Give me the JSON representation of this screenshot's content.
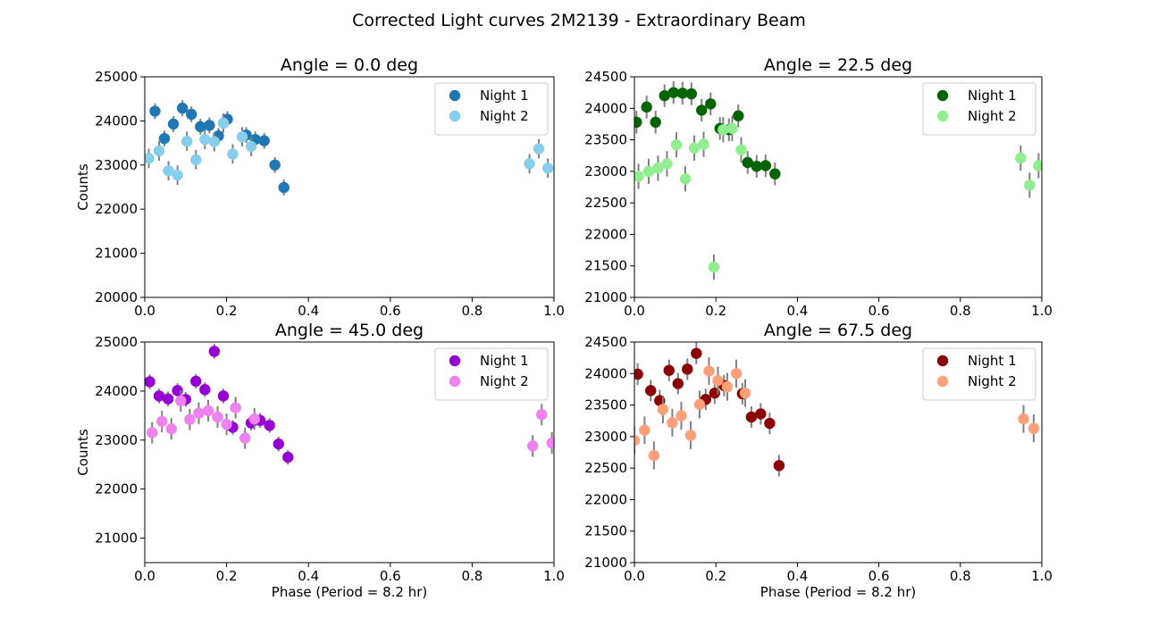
{
  "figure": {
    "suptitle": "Corrected Light curves 2M2139 - Extraordinary Beam"
  },
  "colors": {
    "errorbar": "#808080"
  },
  "chart_data": [
    {
      "type": "scatter",
      "title": "Angle = 0.0 deg",
      "xlabel": "",
      "ylabel": "Counts",
      "xlim": [
        0.0,
        1.0
      ],
      "ylim": [
        20000,
        25000
      ],
      "xticks": [
        0.0,
        0.2,
        0.4,
        0.6,
        0.8,
        1.0
      ],
      "xtick_labels": [
        "0.0",
        "0.2",
        "0.4",
        "0.6",
        "0.8",
        "1.0"
      ],
      "yticks": [
        20000,
        21000,
        22000,
        23000,
        24000,
        25000
      ],
      "ytick_labels": [
        "20000",
        "21000",
        "22000",
        "23000",
        "24000",
        "25000"
      ],
      "legend_position": "top-right",
      "series": [
        {
          "name": "Night 1",
          "color": "#1f77b4",
          "x": [
            0.025,
            0.048,
            0.07,
            0.092,
            0.114,
            0.136,
            0.158,
            0.18,
            0.202,
            0.248,
            0.27,
            0.292,
            0.318,
            0.34
          ],
          "y": [
            24220,
            23600,
            23930,
            24290,
            24150,
            23870,
            23900,
            23660,
            24040,
            23680,
            23580,
            23550,
            23000,
            22490
          ],
          "err": [
            180,
            180,
            180,
            180,
            180,
            180,
            180,
            180,
            180,
            180,
            180,
            180,
            180,
            180
          ]
        },
        {
          "name": "Night 2",
          "color": "#87ceeb",
          "x": [
            0.01,
            0.035,
            0.058,
            0.08,
            0.103,
            0.125,
            0.147,
            0.17,
            0.192,
            0.215,
            0.238,
            0.26,
            0.94,
            0.963,
            0.985
          ],
          "y": [
            23150,
            23320,
            22870,
            22770,
            23540,
            23120,
            23580,
            23530,
            23950,
            23250,
            23640,
            23420,
            23030,
            23370,
            22930
          ],
          "err": [
            220,
            220,
            220,
            220,
            220,
            220,
            220,
            220,
            220,
            220,
            220,
            220,
            220,
            220,
            220
          ]
        }
      ]
    },
    {
      "type": "scatter",
      "title": "Angle = 22.5 deg",
      "xlabel": "",
      "ylabel": "",
      "xlim": [
        0.0,
        1.0
      ],
      "ylim": [
        21000,
        24500
      ],
      "xticks": [
        0.0,
        0.2,
        0.4,
        0.6,
        0.8,
        1.0
      ],
      "xtick_labels": [
        "0.0",
        "0.2",
        "0.4",
        "0.6",
        "0.8",
        "1.0"
      ],
      "yticks": [
        21000,
        21500,
        22000,
        22500,
        23000,
        23500,
        24000,
        24500
      ],
      "ytick_labels": [
        "21000",
        "21500",
        "22000",
        "22500",
        "23000",
        "23500",
        "24000",
        "24500"
      ],
      "legend_position": "top-right",
      "series": [
        {
          "name": "Night 1",
          "color": "#006400",
          "x": [
            0.005,
            0.03,
            0.052,
            0.074,
            0.096,
            0.118,
            0.14,
            0.165,
            0.187,
            0.21,
            0.232,
            0.255,
            0.278,
            0.3,
            0.322,
            0.345
          ],
          "y": [
            23780,
            24020,
            23780,
            24200,
            24250,
            24240,
            24230,
            23970,
            24070,
            23680,
            23660,
            23880,
            23140,
            23080,
            23090,
            22960
          ],
          "err": [
            180,
            180,
            180,
            180,
            180,
            180,
            180,
            180,
            180,
            180,
            180,
            180,
            180,
            180,
            180,
            180
          ]
        },
        {
          "name": "Night 2",
          "color": "#90ee90",
          "x": [
            0.01,
            0.035,
            0.058,
            0.08,
            0.103,
            0.125,
            0.147,
            0.17,
            0.195,
            0.218,
            0.24,
            0.262,
            0.948,
            0.97,
            0.992
          ],
          "y": [
            22920,
            23000,
            23050,
            23120,
            23420,
            22880,
            23370,
            23430,
            21480,
            23660,
            23680,
            23340,
            23210,
            22780,
            23090
          ],
          "err": [
            200,
            200,
            200,
            200,
            200,
            200,
            200,
            200,
            200,
            200,
            200,
            200,
            200,
            200,
            200
          ]
        }
      ]
    },
    {
      "type": "scatter",
      "title": "Angle = 45.0 deg",
      "xlabel": "Phase (Period = 8.2 hr)",
      "ylabel": "Counts",
      "xlim": [
        0.0,
        1.0
      ],
      "ylim": [
        20500,
        25000
      ],
      "xticks": [
        0.0,
        0.2,
        0.4,
        0.6,
        0.8,
        1.0
      ],
      "xtick_labels": [
        "0.0",
        "0.2",
        "0.4",
        "0.6",
        "0.8",
        "1.0"
      ],
      "yticks": [
        21000,
        22000,
        23000,
        24000,
        25000
      ],
      "ytick_labels": [
        "21000",
        "22000",
        "23000",
        "24000",
        "25000"
      ],
      "legend_position": "top-right",
      "series": [
        {
          "name": "Night 1",
          "color": "#9400d3",
          "x": [
            0.012,
            0.035,
            0.057,
            0.08,
            0.1,
            0.125,
            0.147,
            0.17,
            0.192,
            0.215,
            0.26,
            0.282,
            0.305,
            0.327,
            0.35
          ],
          "y": [
            24190,
            23900,
            23840,
            24010,
            23830,
            24200,
            24030,
            24810,
            23900,
            23260,
            23350,
            23400,
            23300,
            22920,
            22650
          ],
          "err": [
            150,
            150,
            150,
            150,
            150,
            150,
            150,
            150,
            150,
            150,
            150,
            150,
            150,
            150,
            150
          ]
        },
        {
          "name": "Night 2",
          "color": "#ee82ee",
          "x": [
            0.018,
            0.042,
            0.065,
            0.088,
            0.11,
            0.132,
            0.155,
            0.178,
            0.2,
            0.222,
            0.245,
            0.268,
            0.948,
            0.97,
            0.995
          ],
          "y": [
            23150,
            23380,
            23230,
            23800,
            23420,
            23550,
            23600,
            23470,
            23320,
            23660,
            23040,
            23430,
            22880,
            23520,
            22940
          ],
          "err": [
            220,
            220,
            220,
            220,
            220,
            220,
            220,
            220,
            220,
            220,
            220,
            220,
            220,
            220,
            220
          ]
        }
      ]
    },
    {
      "type": "scatter",
      "title": "Angle = 67.5 deg",
      "xlabel": "Phase (Period = 8.2 hr)",
      "ylabel": "",
      "xlim": [
        0.0,
        1.0
      ],
      "ylim": [
        21000,
        24500
      ],
      "xticks": [
        0.0,
        0.2,
        0.4,
        0.6,
        0.8,
        1.0
      ],
      "xtick_labels": [
        "0.0",
        "0.2",
        "0.4",
        "0.6",
        "0.8",
        "1.0"
      ],
      "yticks": [
        21000,
        21500,
        22000,
        22500,
        23000,
        23500,
        24000,
        24500
      ],
      "ytick_labels": [
        "21000",
        "21500",
        "22000",
        "22500",
        "23000",
        "23500",
        "24000",
        "24500"
      ],
      "legend_position": "top-right",
      "series": [
        {
          "name": "Night 1",
          "color": "#8b0000",
          "x": [
            0.008,
            0.04,
            0.062,
            0.085,
            0.107,
            0.13,
            0.152,
            0.175,
            0.197,
            0.22,
            0.265,
            0.287,
            0.31,
            0.332,
            0.355
          ],
          "y": [
            23990,
            23730,
            23570,
            24050,
            23840,
            24070,
            24320,
            23590,
            23690,
            23810,
            23680,
            23310,
            23360,
            23210,
            22540
          ],
          "err": [
            170,
            170,
            170,
            170,
            170,
            170,
            170,
            170,
            170,
            170,
            170,
            170,
            170,
            170,
            170
          ]
        },
        {
          "name": "Night 2",
          "color": "#ffa07a",
          "x": [
            0.0,
            0.025,
            0.048,
            0.07,
            0.093,
            0.115,
            0.138,
            0.16,
            0.183,
            0.205,
            0.228,
            0.25,
            0.272,
            0.955,
            0.98
          ],
          "y": [
            22940,
            23100,
            22700,
            23430,
            23220,
            23330,
            23020,
            23510,
            24040,
            23890,
            23790,
            24000,
            23690,
            23280,
            23130
          ],
          "err": [
            220,
            220,
            220,
            220,
            220,
            220,
            220,
            220,
            220,
            220,
            220,
            220,
            220,
            220,
            220
          ]
        }
      ]
    }
  ]
}
